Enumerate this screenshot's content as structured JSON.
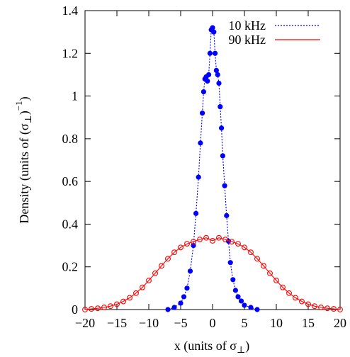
{
  "chart_data": {
    "type": "line",
    "title": "",
    "xlabel": "x (units of σ",
    "xlabel_sub": "⊥",
    "xlabel_close": ")",
    "ylabel": "Density (units of (σ",
    "ylabel_sub": "⊥",
    "ylabel_mid": ")",
    "ylabel_sup": "−1",
    "ylabel_close": ")",
    "xlim": [
      -20,
      20
    ],
    "ylim": [
      0,
      1.4
    ],
    "xticks": [
      -20,
      -15,
      -10,
      -5,
      0,
      5,
      10,
      15,
      20
    ],
    "xtick_labels": [
      "−20",
      "−15",
      "−10",
      "−5",
      "0",
      "5",
      "10",
      "15",
      "20"
    ],
    "yticks": [
      0,
      0.2,
      0.4,
      0.6,
      0.8,
      1,
      1.2,
      1.4
    ],
    "ytick_labels": [
      "0",
      "0.2",
      "0.4",
      "0.6",
      "0.8",
      "1",
      "1.2",
      "1.4"
    ],
    "grid": false,
    "legend_position": "top-right",
    "series": [
      {
        "name": "10 kHz",
        "color": "#0000ff",
        "line": "dotted",
        "marker": "filled-circle",
        "x": [
          -7.0,
          -6.0,
          -5.0,
          -4.5,
          -4.0,
          -3.5,
          -3.0,
          -2.6,
          -2.2,
          -1.9,
          -1.6,
          -1.4,
          -1.2,
          -1.0,
          -0.8,
          -0.6,
          -0.4,
          -0.2,
          0.0,
          0.2,
          0.4,
          0.6,
          0.8,
          1.0,
          1.2,
          1.4,
          1.6,
          1.9,
          2.2,
          2.5,
          2.8,
          3.2,
          3.6,
          4.0,
          4.5,
          5.0,
          6.0,
          7.0
        ],
        "y": [
          0.0,
          0.01,
          0.03,
          0.06,
          0.1,
          0.18,
          0.3,
          0.45,
          0.62,
          0.78,
          0.92,
          1.02,
          1.08,
          1.09,
          1.07,
          1.1,
          1.2,
          1.31,
          1.32,
          1.3,
          1.2,
          1.12,
          1.1,
          1.06,
          0.95,
          0.85,
          0.72,
          0.58,
          0.44,
          0.32,
          0.22,
          0.14,
          0.09,
          0.06,
          0.04,
          0.02,
          0.01,
          0.0
        ]
      },
      {
        "name": "90 kHz",
        "color": "#ff0000",
        "line": "solid",
        "marker": "open-circle",
        "x": [
          -20,
          -19,
          -18,
          -17,
          -16,
          -15,
          -14,
          -13,
          -12,
          -11,
          -10,
          -9,
          -8,
          -7,
          -6,
          -5,
          -4,
          -3,
          -2,
          -1,
          0,
          1,
          2,
          3,
          4,
          5,
          6,
          7,
          8,
          9,
          10,
          11,
          12,
          13,
          14,
          15,
          16,
          17,
          18,
          19,
          20
        ],
        "y": [
          0.0,
          0.003,
          0.006,
          0.01,
          0.016,
          0.025,
          0.038,
          0.055,
          0.077,
          0.104,
          0.136,
          0.17,
          0.205,
          0.238,
          0.268,
          0.291,
          0.308,
          0.318,
          0.328,
          0.336,
          0.322,
          0.336,
          0.328,
          0.318,
          0.308,
          0.291,
          0.268,
          0.238,
          0.205,
          0.17,
          0.136,
          0.104,
          0.077,
          0.055,
          0.038,
          0.025,
          0.016,
          0.01,
          0.006,
          0.003,
          0.0
        ]
      }
    ]
  }
}
